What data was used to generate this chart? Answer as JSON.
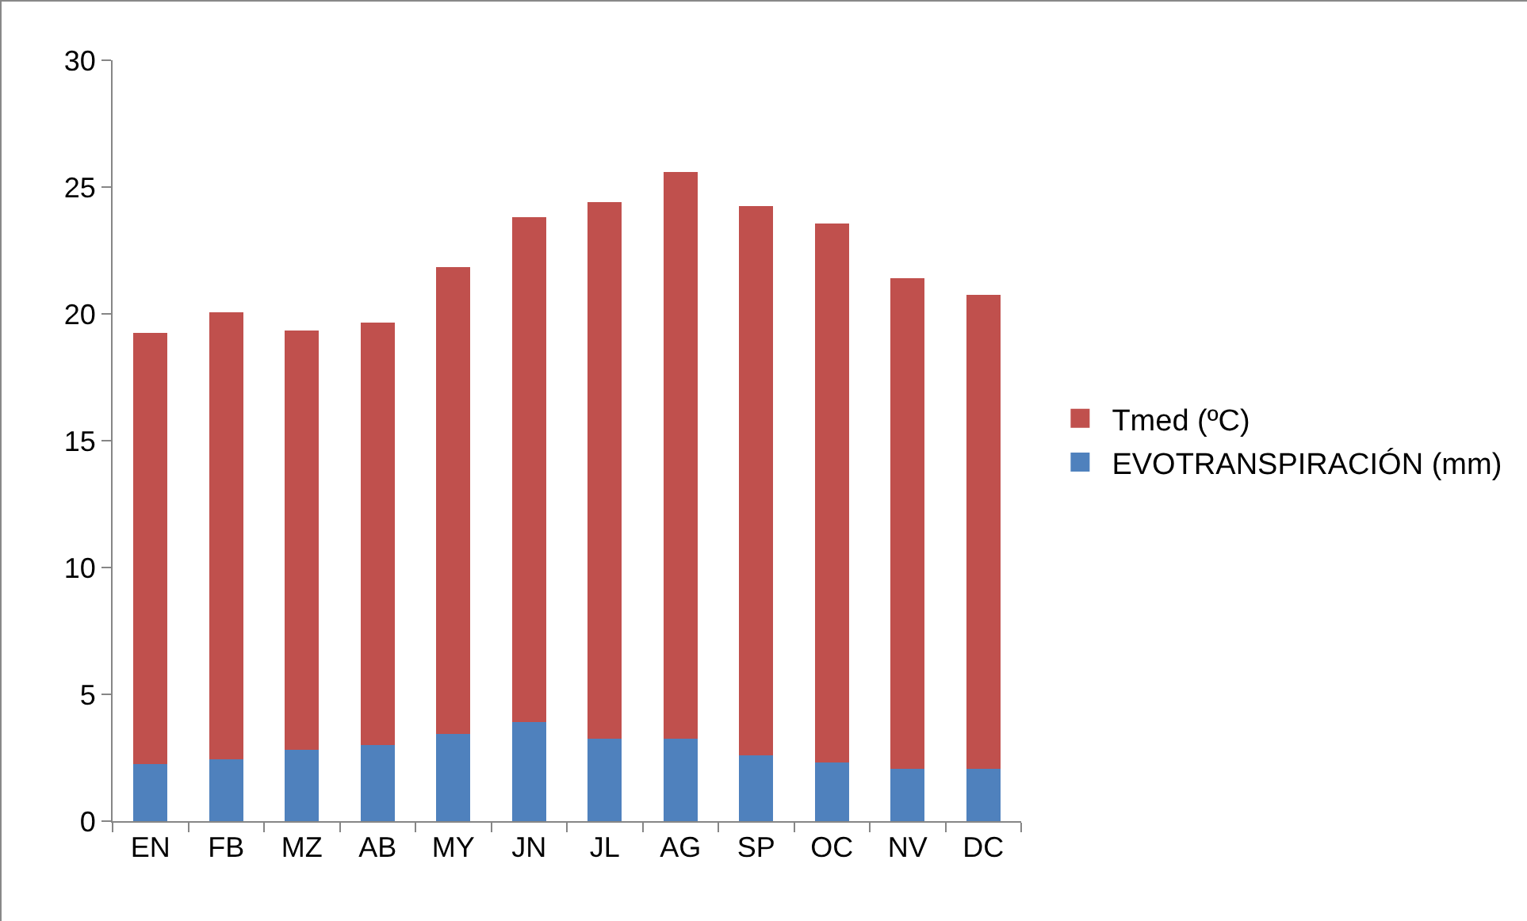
{
  "chart_data": {
    "type": "bar",
    "stacked": true,
    "categories": [
      "EN",
      "FB",
      "MZ",
      "AB",
      "MY",
      "JN",
      "JL",
      "AG",
      "SP",
      "OC",
      "NV",
      "DC"
    ],
    "series": [
      {
        "name": "EVOTRANSPIRACIÓN (mm)",
        "color": "#4f81bd",
        "values": [
          2.25,
          2.45,
          2.8,
          3.0,
          3.45,
          3.9,
          3.25,
          3.25,
          2.6,
          2.3,
          2.05,
          2.05
        ]
      },
      {
        "name": "Tmed (ºC)",
        "color": "#c0504d",
        "values": [
          17.0,
          17.6,
          16.55,
          16.65,
          18.4,
          19.9,
          21.15,
          22.35,
          21.65,
          21.25,
          19.35,
          18.7
        ]
      }
    ],
    "ylim": [
      0,
      30
    ],
    "yticks": [
      0,
      5,
      10,
      15,
      20,
      25,
      30
    ],
    "grid": false,
    "legend": "right"
  }
}
